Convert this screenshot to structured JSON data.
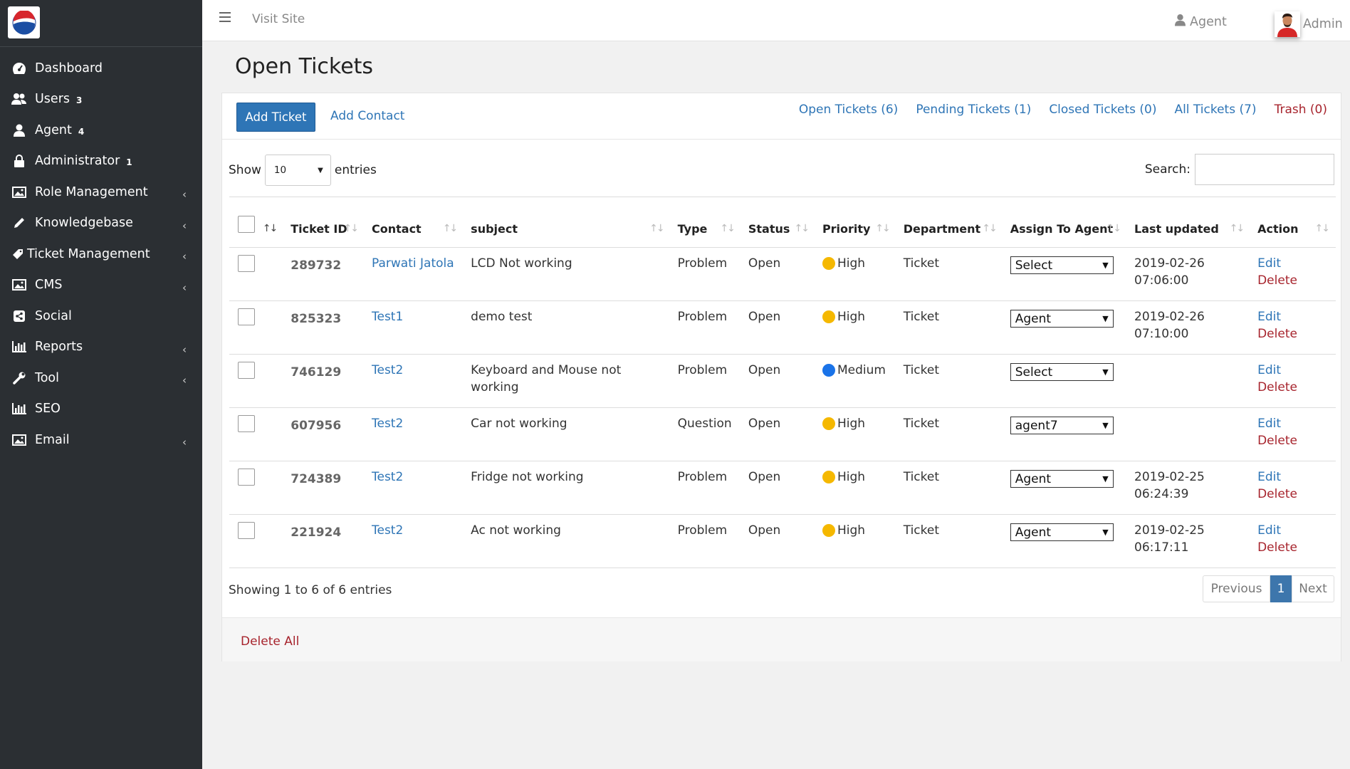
{
  "brand": {
    "accent": "#2e75b6",
    "danger": "#a7242d",
    "sidebar_bg": "#2b2f33",
    "high_color": "#f5b800",
    "medium_color": "#1a73e8"
  },
  "sidebar": {
    "items": [
      {
        "label": "Dashboard",
        "icon": "dashboard-icon",
        "badge": "",
        "chevron": false
      },
      {
        "label": "Users",
        "icon": "users-icon",
        "badge": "3",
        "chevron": false
      },
      {
        "label": "Agent",
        "icon": "user-icon",
        "badge": "4",
        "chevron": false
      },
      {
        "label": "Administrator",
        "icon": "lock-icon",
        "badge": "1",
        "chevron": false
      },
      {
        "label": "Role Management",
        "icon": "image-icon",
        "badge": "",
        "chevron": true
      },
      {
        "label": "Knowledgebase",
        "icon": "pencil-icon",
        "badge": "",
        "chevron": true
      },
      {
        "label": "Ticket Management",
        "icon": "tag-icon",
        "badge": "",
        "chevron": true
      },
      {
        "label": "CMS",
        "icon": "image-icon",
        "badge": "",
        "chevron": true
      },
      {
        "label": "Social",
        "icon": "share-icon",
        "badge": "",
        "chevron": false
      },
      {
        "label": "Reports",
        "icon": "bar-chart-icon",
        "badge": "",
        "chevron": true
      },
      {
        "label": "Tool",
        "icon": "wrench-icon",
        "badge": "",
        "chevron": true
      },
      {
        "label": "SEO",
        "icon": "bar-chart-icon",
        "badge": "",
        "chevron": false
      },
      {
        "label": "Email",
        "icon": "image-icon",
        "badge": "",
        "chevron": true
      }
    ]
  },
  "topbar": {
    "visit_site": "Visit Site",
    "agent": "Agent",
    "admin": "Admin"
  },
  "page": {
    "title": "Open Tickets"
  },
  "toolbar": {
    "add_ticket": "Add Ticket",
    "add_contact": "Add Contact"
  },
  "filters": {
    "open": "Open Tickets (6)",
    "pending": "Pending Tickets (1)",
    "closed": "Closed Tickets (0)",
    "all": "All Tickets (7)",
    "trash": "Trash (0)"
  },
  "table_controls": {
    "show": "Show",
    "length": "10",
    "entries": "entries",
    "search_label": "Search:"
  },
  "columns": {
    "ticket_id": "Ticket ID",
    "contact": "Contact",
    "subject": "subject",
    "type": "Type",
    "status": "Status",
    "priority": "Priority",
    "department": "Department",
    "assign": "Assign To Agent",
    "last_updated": "Last updated",
    "action": "Action"
  },
  "rows": [
    {
      "id": "289732",
      "contact": "Parwati Jatola",
      "subject": "LCD Not working",
      "type": "Problem",
      "status": "Open",
      "priority": "High",
      "department": "Ticket",
      "assign": "Select",
      "updated": "2019-02-26 07:06:00",
      "edit": "Edit",
      "delete": "Delete"
    },
    {
      "id": "825323",
      "contact": "Test1",
      "subject": "demo test",
      "type": "Problem",
      "status": "Open",
      "priority": "High",
      "department": "Ticket",
      "assign": "Agent",
      "updated": "2019-02-26 07:10:00",
      "edit": "Edit",
      "delete": "Delete"
    },
    {
      "id": "746129",
      "contact": "Test2",
      "subject": "Keyboard and Mouse not working",
      "type": "Problem",
      "status": "Open",
      "priority": "Medium",
      "department": "Ticket",
      "assign": "Select",
      "updated": "",
      "edit": "Edit",
      "delete": "Delete"
    },
    {
      "id": "607956",
      "contact": "Test2",
      "subject": "Car not working",
      "type": "Question",
      "status": "Open",
      "priority": "High",
      "department": "Ticket",
      "assign": "agent7",
      "updated": "",
      "edit": "Edit",
      "delete": "Delete"
    },
    {
      "id": "724389",
      "contact": "Test2",
      "subject": "Fridge not working",
      "type": "Problem",
      "status": "Open",
      "priority": "High",
      "department": "Ticket",
      "assign": "Agent",
      "updated": "2019-02-25 06:24:39",
      "edit": "Edit",
      "delete": "Delete"
    },
    {
      "id": "221924",
      "contact": "Test2",
      "subject": "Ac not working",
      "type": "Problem",
      "status": "Open",
      "priority": "High",
      "department": "Ticket",
      "assign": "Agent",
      "updated": "2019-02-25 06:17:11",
      "edit": "Edit",
      "delete": "Delete"
    }
  ],
  "pagination": {
    "info": "Showing 1 to 6 of 6 entries",
    "previous": "Previous",
    "current": "1",
    "next": "Next"
  },
  "footer": {
    "delete_all": "Delete All"
  }
}
